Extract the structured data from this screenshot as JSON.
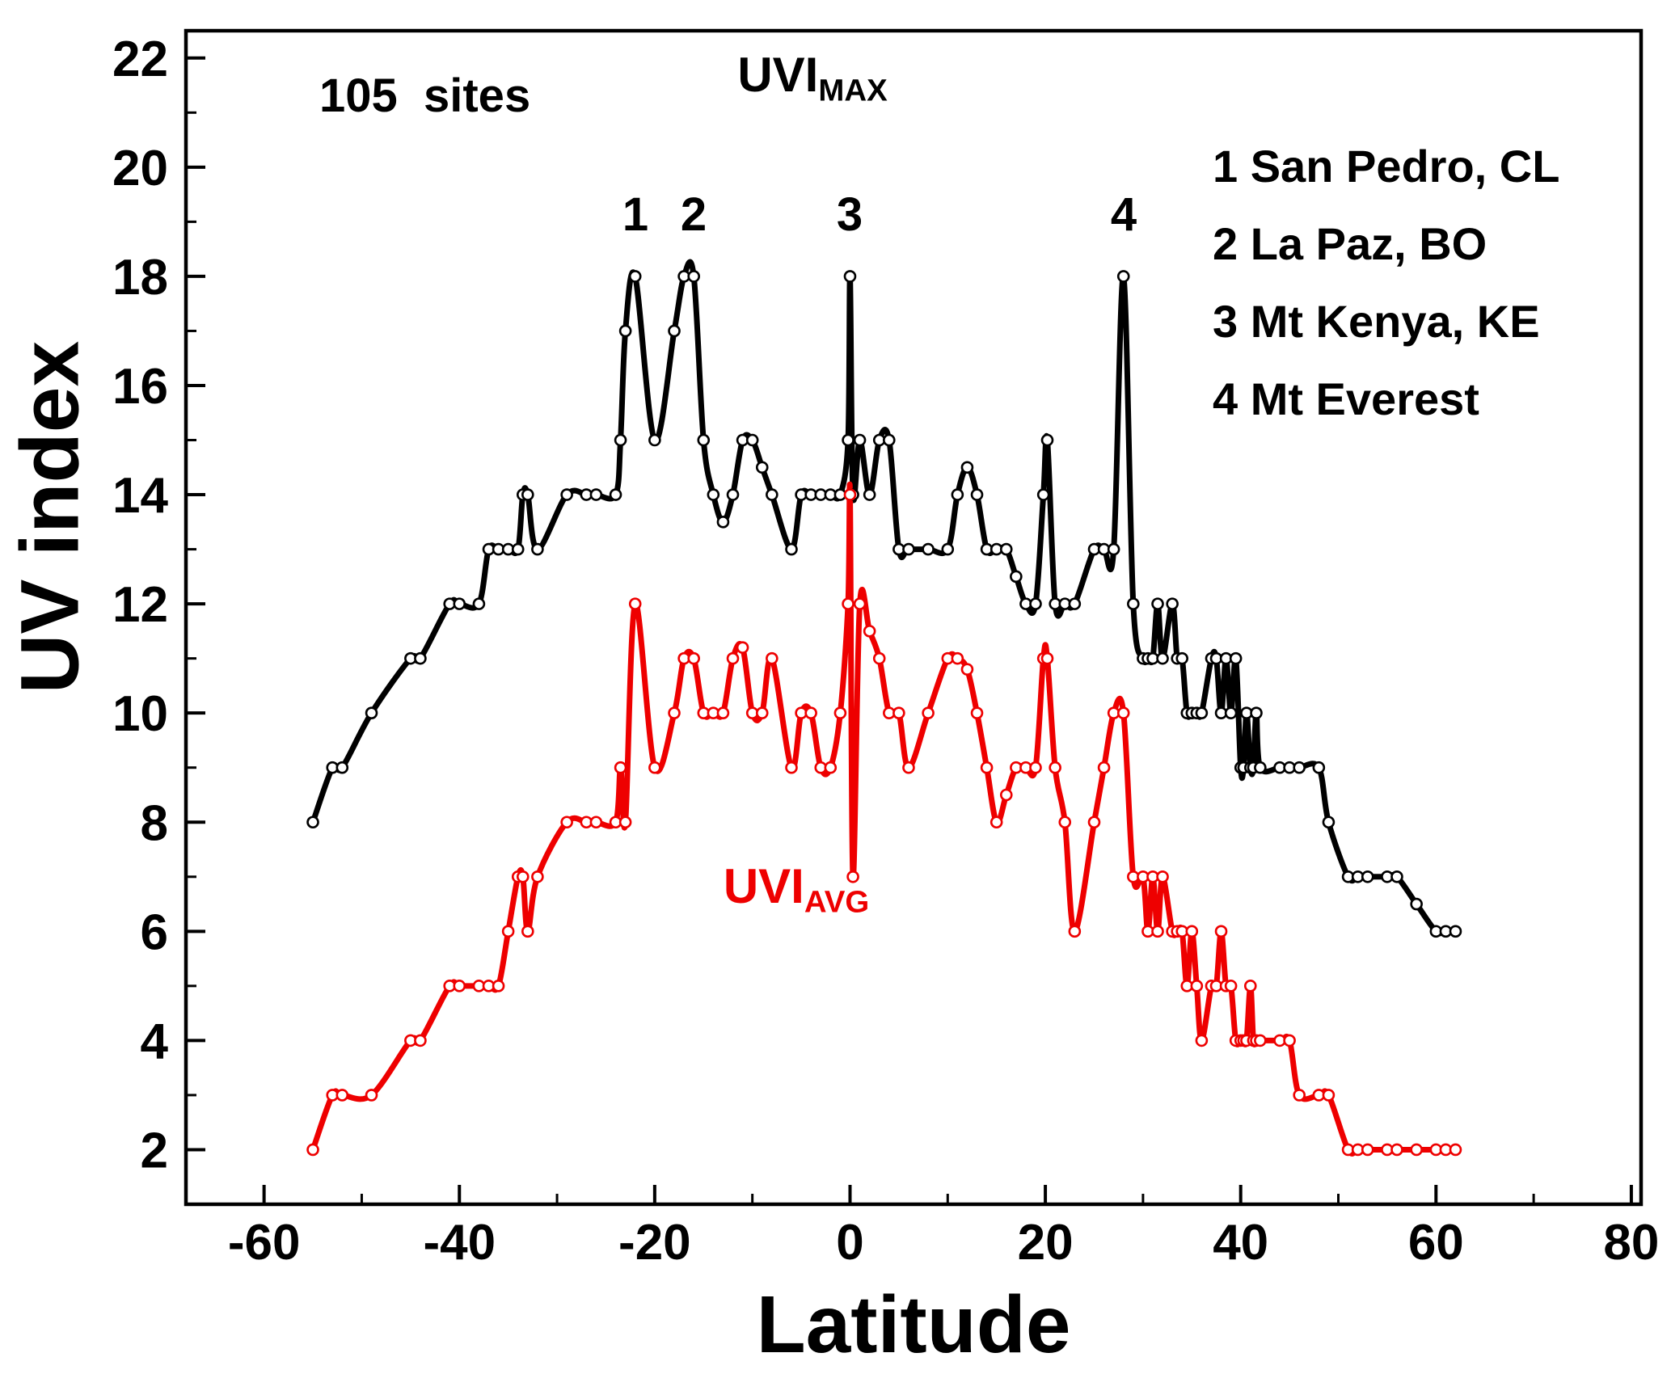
{
  "chart_data": {
    "type": "line",
    "title": "",
    "xlabel": "Latitude",
    "ylabel": "UV index",
    "xlim": [
      -68,
      81
    ],
    "ylim": [
      1,
      22.5
    ],
    "x_ticks": [
      -60,
      -40,
      -20,
      0,
      20,
      40,
      60,
      80
    ],
    "x_minor_step": 10,
    "y_ticks": [
      2,
      4,
      6,
      8,
      10,
      12,
      14,
      16,
      18,
      20,
      22
    ],
    "y_minor_step": 1,
    "grid": false,
    "legend_position": "inside top-right",
    "marker": "open-circle",
    "annotations": {
      "sites": "105  sites",
      "uvi_max": {
        "main": "UVI",
        "sub": "MAX"
      },
      "uvi_avg": {
        "main": "UVI",
        "sub": "AVG"
      },
      "peaks": [
        "1",
        "2",
        "3",
        "4"
      ],
      "peak_sites": [
        "San Pedro, CL",
        "La Paz, BO",
        "Mt Kenya, KE",
        "Mt Everest"
      ],
      "legend": [
        "1 San Pedro, CL",
        "2 La Paz, BO",
        "3 Mt Kenya, KE",
        "4 Mt Everest"
      ]
    },
    "x": [
      -55,
      -53,
      -52,
      -49,
      -45,
      -44,
      -41,
      -40,
      -38,
      -37,
      -36,
      -35,
      -34,
      -33.5,
      -33,
      -32,
      -29,
      -27,
      -26,
      -24,
      -23.5,
      -23,
      -22,
      -20,
      -18,
      -17,
      -16,
      -15,
      -14,
      -13,
      -12,
      -11,
      -10,
      -9,
      -8,
      -6,
      -5,
      -4,
      -3,
      -2,
      -1,
      -0.2,
      0,
      0.3,
      1,
      2,
      3,
      4,
      5,
      6,
      8,
      10,
      11,
      12,
      13,
      14,
      15,
      16,
      17,
      18,
      19,
      19.8,
      20.2,
      21,
      22,
      23,
      25,
      26,
      27,
      28,
      29,
      30,
      30.5,
      31,
      31.5,
      32,
      33,
      33.5,
      34,
      34.5,
      35,
      35.5,
      36,
      37,
      37.5,
      38,
      38.5,
      39,
      39.5,
      40,
      40.3,
      40.6,
      41,
      41.3,
      41.6,
      42,
      44,
      45,
      46,
      48,
      49,
      51,
      52,
      53,
      55,
      56,
      58,
      60,
      61,
      62
    ],
    "series": [
      {
        "name": "UVI_MAX",
        "color": "#000000",
        "values": [
          8,
          9,
          9,
          10,
          11,
          11,
          12,
          12,
          12,
          13,
          13,
          13,
          13,
          14,
          14,
          13,
          14,
          14,
          14,
          14,
          15,
          17,
          18,
          15,
          17,
          18,
          18,
          15,
          14,
          13.5,
          14,
          15,
          15,
          14.5,
          14,
          13,
          14,
          14,
          14,
          14,
          14,
          15,
          18,
          14,
          15,
          14,
          15,
          15,
          13,
          13,
          13,
          13,
          14,
          14.5,
          14,
          13,
          13,
          13,
          12.5,
          12,
          12,
          14,
          15,
          12,
          12,
          12,
          13,
          13,
          13,
          18,
          12,
          11,
          11,
          11,
          12,
          11,
          12,
          11,
          11,
          10,
          10,
          10,
          10,
          11,
          11,
          10,
          11,
          10,
          11,
          9,
          9,
          10,
          9,
          9,
          10,
          9,
          9,
          9,
          9,
          9,
          8,
          7,
          7,
          7,
          7,
          7,
          6.5,
          6,
          6,
          6
        ]
      },
      {
        "name": "UVI_AVG",
        "color": "#ee0000",
        "values": [
          2,
          3,
          3,
          3,
          4,
          4,
          5,
          5,
          5,
          5,
          5,
          6,
          7,
          7,
          6,
          7,
          8,
          8,
          8,
          8,
          9,
          8,
          12,
          9,
          10,
          11,
          11,
          10,
          10,
          10,
          11,
          11.2,
          10,
          10,
          11,
          9,
          10,
          10,
          9,
          9,
          10,
          12,
          14,
          7,
          12,
          11.5,
          11,
          10,
          10,
          9,
          10,
          11,
          11,
          10.8,
          10,
          9,
          8,
          8.5,
          9,
          9,
          9,
          11,
          11,
          9,
          8,
          6,
          8,
          9,
          10,
          10,
          7,
          7,
          6,
          7,
          6,
          7,
          6,
          6,
          6,
          5,
          6,
          5,
          4,
          5,
          5,
          6,
          5,
          5,
          4,
          4,
          4,
          4,
          5,
          4,
          4,
          4,
          4,
          4,
          3,
          3,
          3,
          2,
          2,
          2,
          2,
          2,
          2,
          2,
          2,
          2
        ]
      }
    ]
  }
}
